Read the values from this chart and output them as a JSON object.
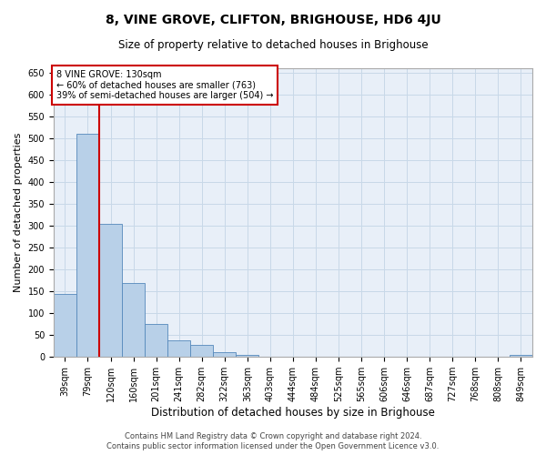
{
  "title": "8, VINE GROVE, CLIFTON, BRIGHOUSE, HD6 4JU",
  "subtitle": "Size of property relative to detached houses in Brighouse",
  "xlabel": "Distribution of detached houses by size in Brighouse",
  "ylabel": "Number of detached properties",
  "footnote1": "Contains HM Land Registry data © Crown copyright and database right 2024.",
  "footnote2": "Contains public sector information licensed under the Open Government Licence v3.0.",
  "annotation_line1": "8 VINE GROVE: 130sqm",
  "annotation_line2": "← 60% of detached houses are smaller (763)",
  "annotation_line3": "39% of semi-detached houses are larger (504) →",
  "bar_color": "#b8d0e8",
  "bar_edge_color": "#5588bb",
  "property_line_color": "#cc0000",
  "annotation_box_color": "#cc0000",
  "grid_color": "#c8d8e8",
  "background_color": "#e8eff8",
  "bin_labels": [
    "39sqm",
    "79sqm",
    "120sqm",
    "160sqm",
    "201sqm",
    "241sqm",
    "282sqm",
    "322sqm",
    "363sqm",
    "403sqm",
    "444sqm",
    "484sqm",
    "525sqm",
    "565sqm",
    "606sqm",
    "646sqm",
    "687sqm",
    "727sqm",
    "768sqm",
    "808sqm",
    "849sqm"
  ],
  "bar_values": [
    145,
    510,
    305,
    170,
    75,
    38,
    28,
    10,
    5,
    0,
    0,
    0,
    0,
    0,
    0,
    0,
    0,
    0,
    0,
    0,
    5
  ],
  "property_line_x": 1.5,
  "ylim": [
    0,
    660
  ],
  "yticks": [
    0,
    50,
    100,
    150,
    200,
    250,
    300,
    350,
    400,
    450,
    500,
    550,
    600,
    650
  ],
  "title_fontsize": 10,
  "subtitle_fontsize": 8.5,
  "ylabel_fontsize": 8,
  "xlabel_fontsize": 8.5,
  "tick_fontsize": 7,
  "annotation_fontsize": 7,
  "footnote_fontsize": 6
}
